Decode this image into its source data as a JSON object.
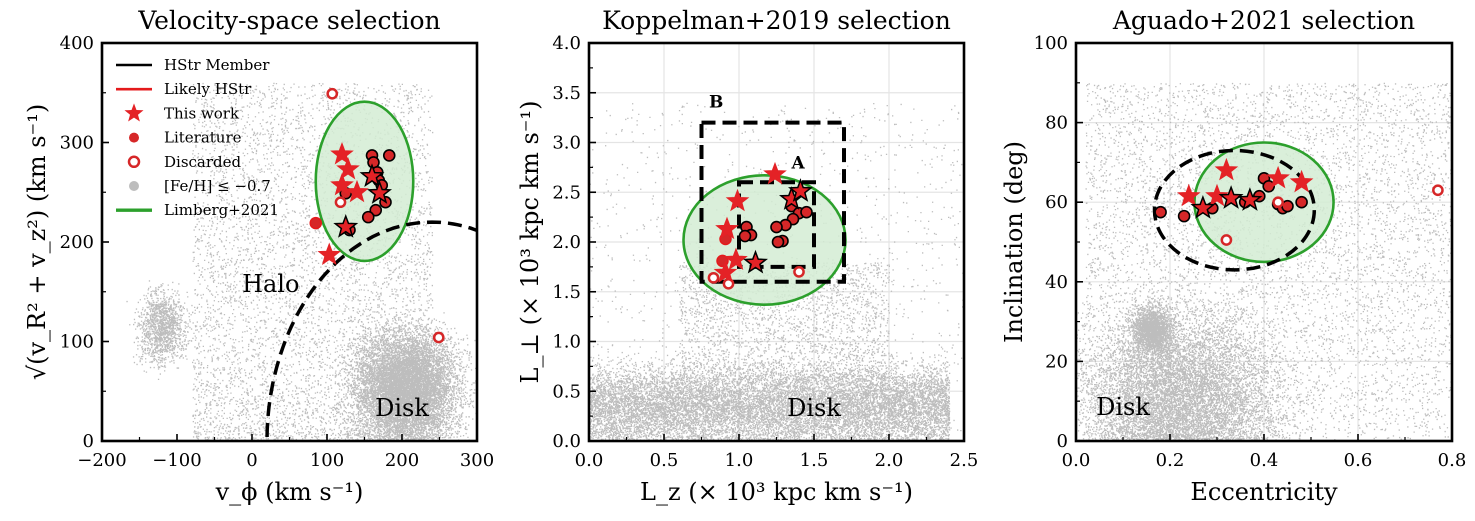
{
  "chart_data": [
    {
      "type": "scatter",
      "title": "Velocity-space selection",
      "xlabel": "v_ϕ (km s⁻¹)",
      "ylabel": "√(v_R² + v_z²) (km s⁻¹)",
      "xlim": [
        -200,
        300
      ],
      "ylim": [
        0,
        400
      ],
      "xticks": [
        -200,
        -100,
        0,
        100,
        200,
        300
      ],
      "xtick_labels": [
        "−200",
        "−100",
        "0",
        "100",
        "200",
        "300"
      ],
      "yticks": [
        0,
        100,
        200,
        300,
        400
      ],
      "ytick_labels": [
        "0",
        "100",
        "200",
        "300",
        "400"
      ],
      "grid": false,
      "legend": {
        "position": "top-left",
        "entries": [
          "HStr Member",
          "Likely HStr",
          "This work",
          "Literature",
          "Discarded",
          "[Fe/H] ≤ −0.7",
          "Limberg+2021"
        ]
      },
      "region_labels": [
        {
          "text": "Halo",
          "x": 25,
          "y": 150
        },
        {
          "text": "Disk",
          "x": 200,
          "y": 25
        }
      ],
      "ellipse": {
        "cx": 150,
        "cy": 261,
        "rx": 65,
        "ry": 80
      },
      "arc": {
        "cx": 240,
        "cy": 0,
        "r": 220
      },
      "this_work": [
        {
          "x": 120,
          "y": 288
        },
        {
          "x": 140,
          "y": 250
        },
        {
          "x": 120,
          "y": 257
        },
        {
          "x": 128,
          "y": 273
        },
        {
          "x": 103,
          "y": 187
        }
      ],
      "hstr_stars": [
        {
          "x": 160,
          "y": 266
        },
        {
          "x": 170,
          "y": 249
        },
        {
          "x": 125,
          "y": 215
        }
      ],
      "literature": [
        {
          "x": 160,
          "y": 287
        },
        {
          "x": 162,
          "y": 280
        },
        {
          "x": 167,
          "y": 270
        },
        {
          "x": 169,
          "y": 262
        },
        {
          "x": 173,
          "y": 257
        },
        {
          "x": 183,
          "y": 287
        },
        {
          "x": 178,
          "y": 240
        },
        {
          "x": 165,
          "y": 232
        },
        {
          "x": 155,
          "y": 225
        },
        {
          "x": 125,
          "y": 249
        },
        {
          "x": 130,
          "y": 212
        }
      ],
      "literature_likely": [
        {
          "x": 85,
          "y": 219
        }
      ],
      "discarded": [
        {
          "x": 107,
          "y": 349
        },
        {
          "x": 118,
          "y": 240
        },
        {
          "x": 249,
          "y": 104
        }
      ]
    },
    {
      "type": "scatter",
      "title": "Koppelman+2019 selection",
      "xlabel": "L_z (× 10³ kpc km s⁻¹)",
      "ylabel": "L_⊥ (× 10³ kpc km s⁻¹)",
      "xlim": [
        0,
        2.5
      ],
      "ylim": [
        0,
        4
      ],
      "xticks": [
        0,
        0.5,
        1.0,
        1.5,
        2.0,
        2.5
      ],
      "xtick_labels": [
        "0.0",
        "0.5",
        "1.0",
        "1.5",
        "2.0",
        "2.5"
      ],
      "yticks": [
        0,
        0.5,
        1.0,
        1.5,
        2.0,
        2.5,
        3.0,
        3.5,
        4.0
      ],
      "ytick_labels": [
        "0.0",
        "0.5",
        "1.0",
        "1.5",
        "2.0",
        "2.5",
        "3.0",
        "3.5",
        "4.0"
      ],
      "grid": true,
      "region_labels": [
        {
          "text": "Disk",
          "x": 1.5,
          "y": 0.25
        }
      ],
      "box_labels": [
        {
          "text": "B",
          "x": 0.8,
          "y": 3.35
        },
        {
          "text": "A",
          "x": 1.35,
          "y": 2.74
        }
      ],
      "box_B": {
        "x0": 0.75,
        "x1": 1.7,
        "y0": 1.6,
        "y1": 3.2
      },
      "box_A": {
        "x0": 1.0,
        "x1": 1.5,
        "y0": 1.75,
        "y1": 2.6
      },
      "ellipse": {
        "cx": 1.17,
        "cy": 2.02,
        "rx": 0.54,
        "ry": 0.65
      },
      "this_work": [
        {
          "x": 1.24,
          "y": 2.68
        },
        {
          "x": 0.99,
          "y": 2.41
        },
        {
          "x": 0.92,
          "y": 2.13
        },
        {
          "x": 0.91,
          "y": 1.69
        },
        {
          "x": 0.98,
          "y": 1.82
        }
      ],
      "hstr_stars": [
        {
          "x": 1.35,
          "y": 2.43
        },
        {
          "x": 1.41,
          "y": 2.51
        },
        {
          "x": 1.11,
          "y": 1.79
        }
      ],
      "literature": [
        {
          "x": 1.35,
          "y": 2.36
        },
        {
          "x": 1.4,
          "y": 2.29
        },
        {
          "x": 1.36,
          "y": 2.23
        },
        {
          "x": 1.31,
          "y": 2.17
        },
        {
          "x": 1.25,
          "y": 2.15
        },
        {
          "x": 1.05,
          "y": 2.15
        },
        {
          "x": 1.08,
          "y": 2.07
        },
        {
          "x": 1.04,
          "y": 2.06
        },
        {
          "x": 1.29,
          "y": 2.01
        },
        {
          "x": 1.26,
          "y": 2.0
        },
        {
          "x": 1.45,
          "y": 2.3
        }
      ],
      "literature_likely": [
        {
          "x": 0.91,
          "y": 2.03
        },
        {
          "x": 0.89,
          "y": 1.81
        }
      ],
      "discarded": [
        {
          "x": 0.83,
          "y": 1.64
        },
        {
          "x": 0.93,
          "y": 1.58
        },
        {
          "x": 1.4,
          "y": 1.7
        }
      ]
    },
    {
      "type": "scatter",
      "title": "Aguado+2021 selection",
      "xlabel": "Eccentricity",
      "ylabel": "Inclination (deg)",
      "xlim": [
        0,
        0.8
      ],
      "ylim": [
        0,
        100
      ],
      "xticks": [
        0,
        0.2,
        0.4,
        0.6,
        0.8
      ],
      "xtick_labels": [
        "0.0",
        "0.2",
        "0.4",
        "0.6",
        "0.8"
      ],
      "yticks": [
        0,
        20,
        40,
        60,
        80,
        100
      ],
      "ytick_labels": [
        "0",
        "20",
        "40",
        "60",
        "80",
        "100"
      ],
      "grid": true,
      "region_labels": [
        {
          "text": "Disk",
          "x": 0.1,
          "y": 6.5
        }
      ],
      "dashed_ellipse": {
        "cx": 0.337,
        "cy": 58,
        "rx": 0.17,
        "ry": 15
      },
      "ellipse": {
        "cx": 0.4,
        "cy": 60,
        "rx": 0.148,
        "ry": 15
      },
      "this_work": [
        {
          "x": 0.32,
          "y": 68
        },
        {
          "x": 0.24,
          "y": 61.5
        },
        {
          "x": 0.3,
          "y": 61.5
        },
        {
          "x": 0.43,
          "y": 66
        },
        {
          "x": 0.48,
          "y": 65
        }
      ],
      "hstr_stars": [
        {
          "x": 0.27,
          "y": 58.5
        },
        {
          "x": 0.33,
          "y": 61
        },
        {
          "x": 0.37,
          "y": 60.5
        }
      ],
      "literature": [
        {
          "x": 0.18,
          "y": 57.5
        },
        {
          "x": 0.23,
          "y": 56.5
        },
        {
          "x": 0.29,
          "y": 58.5
        },
        {
          "x": 0.4,
          "y": 66
        },
        {
          "x": 0.41,
          "y": 64
        },
        {
          "x": 0.43,
          "y": 59.5
        },
        {
          "x": 0.44,
          "y": 58.5
        },
        {
          "x": 0.45,
          "y": 59
        },
        {
          "x": 0.48,
          "y": 60
        },
        {
          "x": 0.39,
          "y": 61.5
        },
        {
          "x": 0.36,
          "y": 60
        }
      ],
      "literature_likely": [],
      "discarded": [
        {
          "x": 0.32,
          "y": 50.5
        },
        {
          "x": 0.77,
          "y": 63
        },
        {
          "x": 0.43,
          "y": 60
        }
      ]
    }
  ],
  "colors": {
    "member": "#000000",
    "likely": "#e41a1c",
    "star_fill": "#e42226",
    "literature_fill": "#d62728",
    "field": "#bdbdbd",
    "limberg": "#2ca02c",
    "limberg_fill": "#d3ecd3",
    "grid": "#e4e4e4"
  }
}
